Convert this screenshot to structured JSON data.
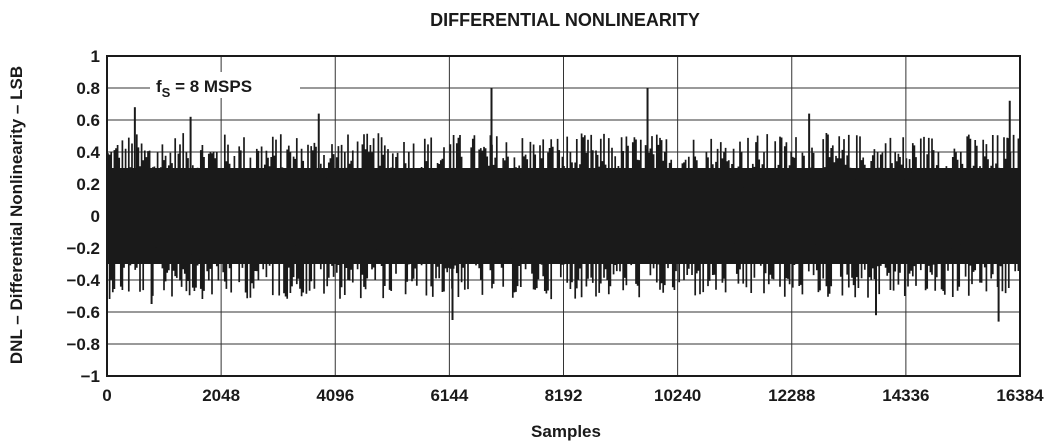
{
  "chart_data": {
    "type": "line",
    "title": "DIFFERENTIAL NONLINEARITY",
    "xlabel": "Samples",
    "ylabel": "DNL – Differential Nonlinearity – LSB",
    "xlim": [
      0,
      16384
    ],
    "ylim": [
      -1,
      1
    ],
    "x_ticks": [
      "0",
      "2048",
      "4096",
      "6144",
      "8192",
      "10240",
      "12288",
      "14336",
      "16384"
    ],
    "y_ticks": [
      "1",
      "0.8",
      "0.6",
      "0.4",
      "0.2",
      "0",
      "−0.2",
      "−0.4",
      "−0.6",
      "−0.8",
      "−1"
    ],
    "grid": true,
    "annotation": {
      "main": "f",
      "subscript": "S",
      "rest": " = 8 MSPS"
    },
    "series": [
      {
        "description": "DNL noise band",
        "typical_range": [
          -0.4,
          0.4
        ],
        "peaks": [
          {
            "x": 500,
            "y": 0.68
          },
          {
            "x": 1500,
            "y": 0.62
          },
          {
            "x": 3800,
            "y": 0.64
          },
          {
            "x": 6900,
            "y": 0.8
          },
          {
            "x": 9700,
            "y": 0.8
          },
          {
            "x": 12600,
            "y": 0.64
          },
          {
            "x": 16200,
            "y": 0.72
          }
        ],
        "troughs": [
          {
            "x": 800,
            "y": -0.55
          },
          {
            "x": 6200,
            "y": -0.65
          },
          {
            "x": 13800,
            "y": -0.62
          },
          {
            "x": 16000,
            "y": -0.66
          }
        ]
      }
    ]
  }
}
